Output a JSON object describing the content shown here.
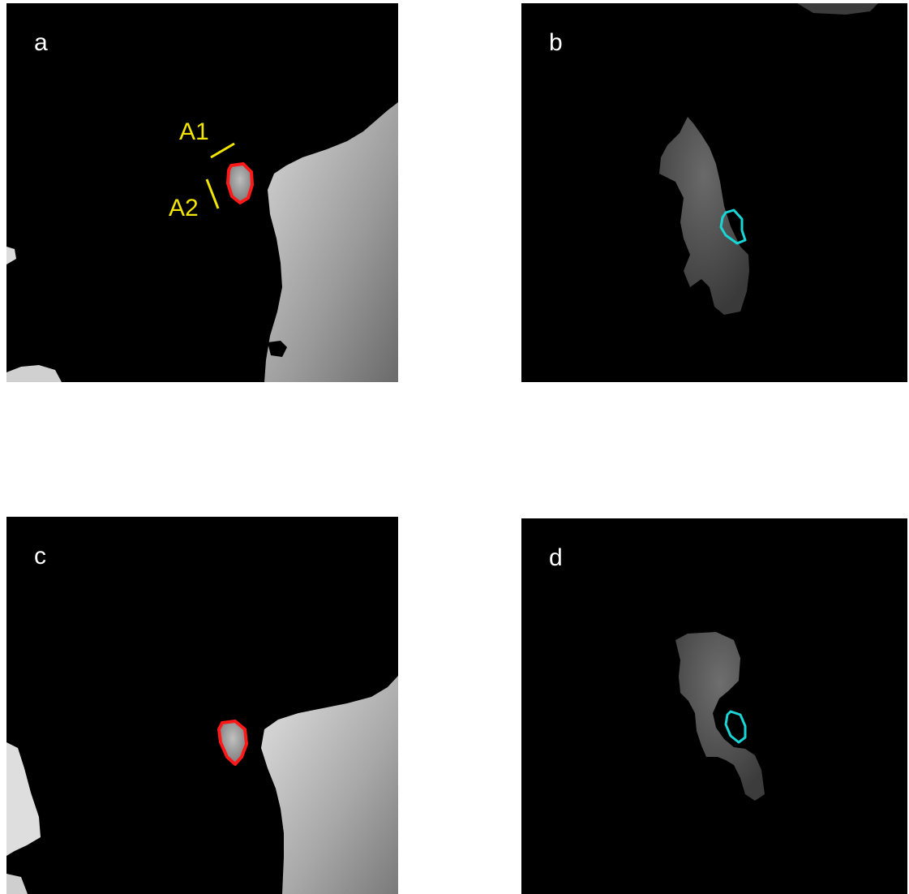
{
  "panels": [
    {
      "label": "a",
      "annotations": {
        "line1_label": "A1",
        "line2_label": "A2"
      }
    },
    {
      "label": "b"
    },
    {
      "label": "c"
    },
    {
      "label": "d"
    }
  ],
  "colors": {
    "background": "#000000",
    "outline_red": "#ff1a1a",
    "outline_cyan": "#19d6d6",
    "annotation_yellow": "#f2e600",
    "label": "#ffffff"
  }
}
